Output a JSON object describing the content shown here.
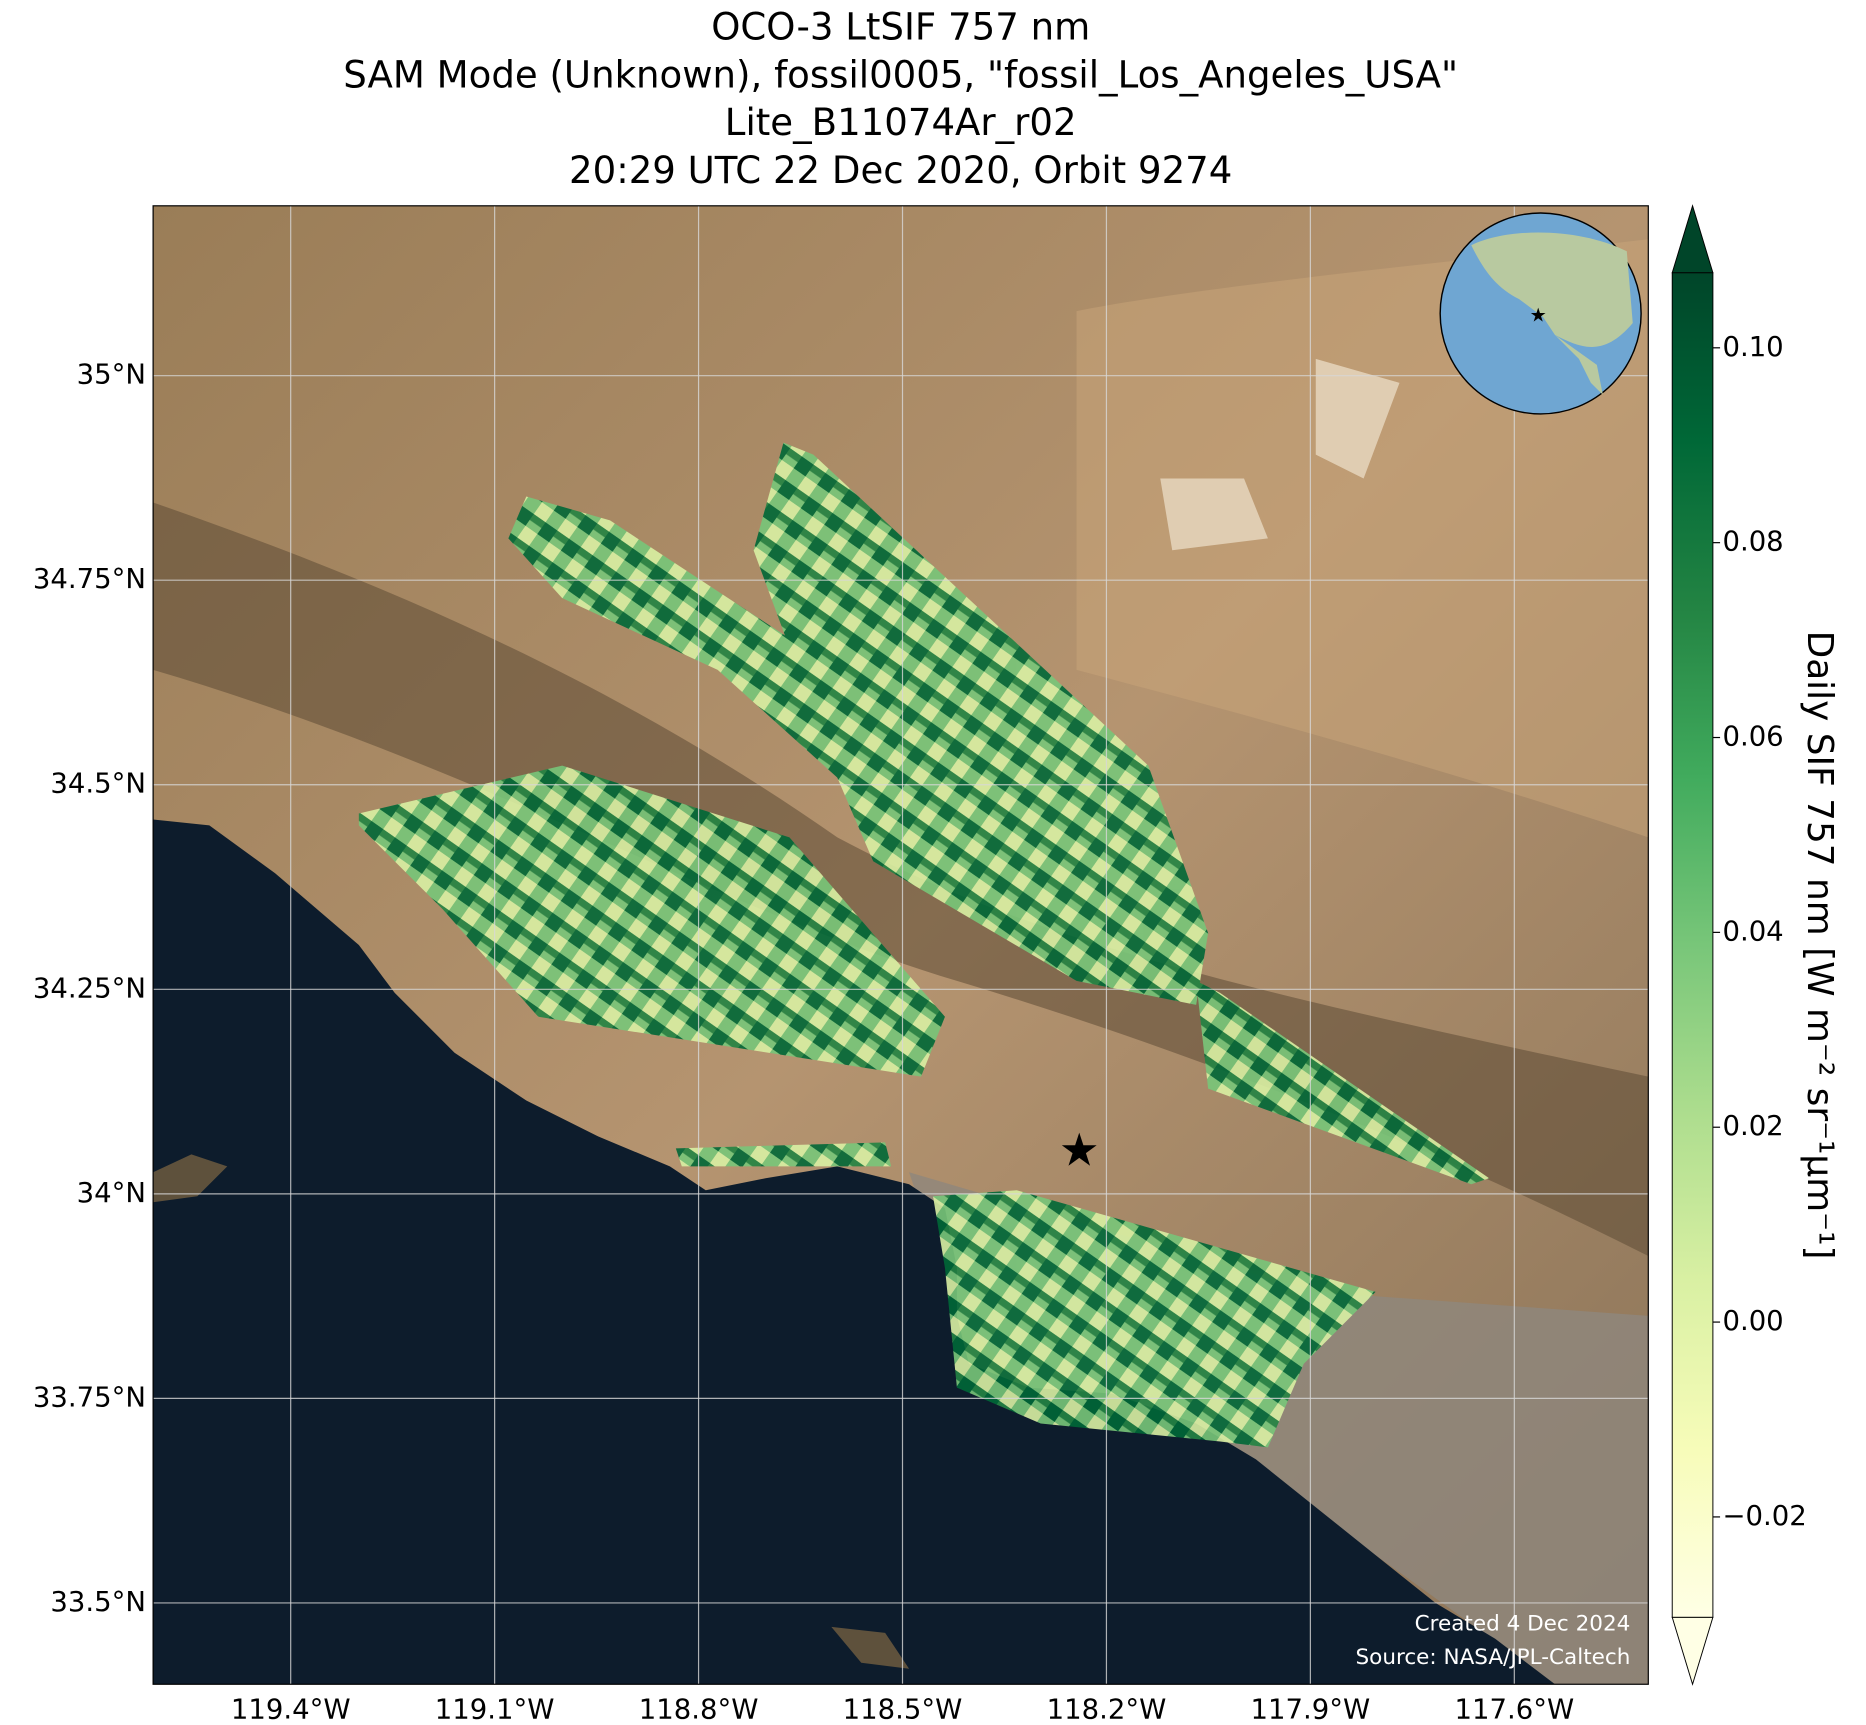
{
  "header": {
    "title_lines": [
      "OCO-3 LtSIF 757 nm",
      "SAM Mode (Unknown), fossil0005, \"fossil_Los_Angeles_USA\"",
      "Lite_B11074Ar_r02",
      "20:29 UTC 22 Dec 2020, Orbit 9274"
    ]
  },
  "map": {
    "xlim": [
      -119.6024,
      -117.4029
    ],
    "ylim": [
      33.4006,
      35.2076
    ],
    "xticks": [
      {
        "value": -119.4,
        "label": "119.4°W"
      },
      {
        "value": -119.1,
        "label": "119.1°W"
      },
      {
        "value": -118.8,
        "label": "118.8°W"
      },
      {
        "value": -118.5,
        "label": "118.5°W"
      },
      {
        "value": -118.2,
        "label": "118.2°W"
      },
      {
        "value": -117.9,
        "label": "117.9°W"
      },
      {
        "value": -117.6,
        "label": "117.6°W"
      }
    ],
    "yticks": [
      {
        "value": 35,
        "label": "35°N"
      },
      {
        "value": 34.75,
        "label": "34.75°N"
      },
      {
        "value": 34.5,
        "label": "34.5°N"
      },
      {
        "value": 34.25,
        "label": "34.25°N"
      },
      {
        "value": 34,
        "label": "34°N"
      },
      {
        "value": 33.75,
        "label": "33.75°N"
      },
      {
        "value": 33.5,
        "label": "33.5°N"
      }
    ],
    "target": {
      "lon": -118.24,
      "lat": 34.05,
      "color": "#ff0000"
    }
  },
  "colorbar": {
    "label": "Daily SIF 757 nm [W m⁻² sr⁻¹μm⁻¹]",
    "lim": [
      -0.0303,
      0.1077
    ],
    "ticks": [
      {
        "value": 0.1,
        "label": "0.10"
      },
      {
        "value": 0.08,
        "label": "0.08"
      },
      {
        "value": 0.06,
        "label": "0.06"
      },
      {
        "value": 0.04,
        "label": "0.04"
      },
      {
        "value": 0.02,
        "label": "0.02"
      },
      {
        "value": 0,
        "label": "0.00"
      },
      {
        "value": -0.02,
        "label": "−0.02"
      }
    ],
    "colors": [
      "#ffffe5",
      "#f7fcb9",
      "#d9f0a3",
      "#addd8e",
      "#78c679",
      "#41ab5d",
      "#238443",
      "#006837",
      "#004529"
    ]
  },
  "credits": [
    "Created 4 Dec 2024",
    "Source: NASA/JPL-Caltech"
  ]
}
